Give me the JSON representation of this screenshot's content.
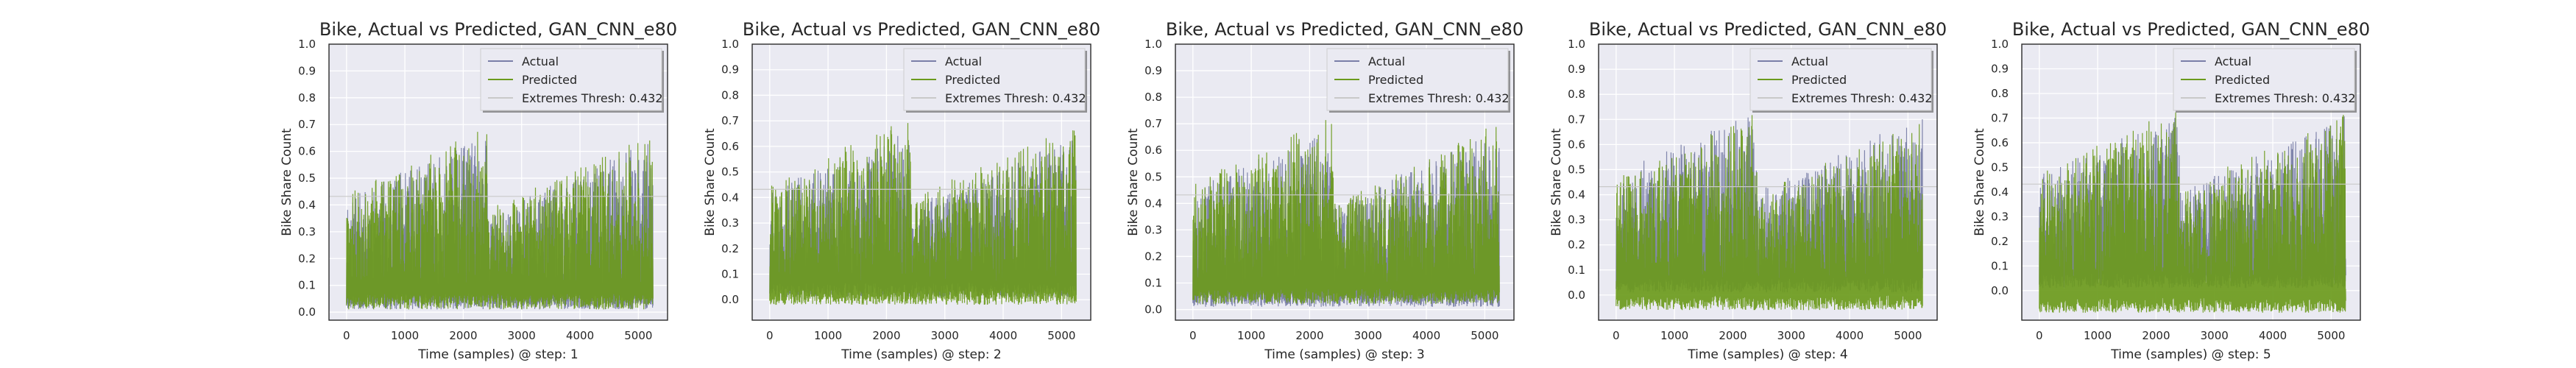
{
  "colors": {
    "actual": "#7a7fa8",
    "predicted": "#6b9a1c",
    "extremes": "#c9c9c9",
    "plot_bg": "#eaeaf2",
    "grid": "#ffffff"
  },
  "chart_data": [
    {
      "type": "line",
      "title": "Bike, Actual vs Predicted, GAN_CNN_e80",
      "xlabel": "Time (samples) @ step: 1",
      "ylabel": "Bike Share Count",
      "xlim": [
        -300,
        5500
      ],
      "ylim": [
        -0.03,
        1.0
      ],
      "xticks": [
        0,
        1000,
        2000,
        3000,
        4000,
        5000
      ],
      "yticks": [
        0.0,
        0.1,
        0.2,
        0.3,
        0.4,
        0.5,
        0.6,
        0.7,
        0.8,
        0.9,
        1.0
      ],
      "ytick_labels": [
        "0.0",
        "0.1",
        "0.2",
        "0.3",
        "0.4",
        "0.5",
        "0.6",
        "0.7",
        "0.8",
        "0.9",
        "1.0"
      ],
      "grid": true,
      "legend_position": "top-right",
      "extremes_threshold": 0.432,
      "series": [
        {
          "name": "Actual",
          "x_range": [
            0,
            5250
          ],
          "low": 0.01,
          "peak_max": 0.66
        },
        {
          "name": "Predicted",
          "x_range": [
            0,
            5250
          ],
          "low": 0.01,
          "peak_max": 0.69
        },
        {
          "name": "Extremes Thresh: 0.432",
          "value": 0.432
        }
      ]
    },
    {
      "type": "line",
      "title": "Bike, Actual vs Predicted, GAN_CNN_e80",
      "xlabel": "Time (samples) @ step: 2",
      "ylabel": "Bike Share Count",
      "xlim": [
        -300,
        5500
      ],
      "ylim": [
        -0.08,
        1.0
      ],
      "xticks": [
        0,
        1000,
        2000,
        3000,
        4000,
        5000
      ],
      "yticks": [
        0.0,
        0.1,
        0.2,
        0.3,
        0.4,
        0.5,
        0.6,
        0.7,
        0.8,
        0.9,
        1.0
      ],
      "ytick_labels": [
        "0.0",
        "0.1",
        "0.2",
        "0.3",
        "0.4",
        "0.5",
        "0.6",
        "0.7",
        "0.8",
        "0.9",
        "1.0"
      ],
      "grid": true,
      "legend_position": "top-right",
      "extremes_threshold": 0.432,
      "series": [
        {
          "name": "Actual",
          "x_range": [
            0,
            5250
          ],
          "low": 0.01,
          "peak_max": 0.66
        },
        {
          "name": "Predicted",
          "x_range": [
            0,
            5250
          ],
          "low": -0.02,
          "peak_max": 0.71
        },
        {
          "name": "Extremes Thresh: 0.432",
          "value": 0.432
        }
      ]
    },
    {
      "type": "line",
      "title": "Bike, Actual vs Predicted, GAN_CNN_e80",
      "xlabel": "Time (samples) @ step: 3",
      "ylabel": "Bike Share Count",
      "xlim": [
        -300,
        5500
      ],
      "ylim": [
        -0.04,
        1.0
      ],
      "xticks": [
        0,
        1000,
        2000,
        3000,
        4000,
        5000
      ],
      "yticks": [
        0.0,
        0.1,
        0.2,
        0.3,
        0.4,
        0.5,
        0.6,
        0.7,
        0.8,
        0.9,
        1.0
      ],
      "ytick_labels": [
        "0.0",
        "0.1",
        "0.2",
        "0.3",
        "0.4",
        "0.5",
        "0.6",
        "0.7",
        "0.8",
        "0.9",
        "1.0"
      ],
      "grid": true,
      "legend_position": "top-right",
      "extremes_threshold": 0.432,
      "series": [
        {
          "name": "Actual",
          "x_range": [
            0,
            5250
          ],
          "low": 0.01,
          "peak_max": 0.7
        },
        {
          "name": "Predicted",
          "x_range": [
            0,
            5250
          ],
          "low": 0.02,
          "peak_max": 0.73
        },
        {
          "name": "Extremes Thresh: 0.432",
          "value": 0.432
        }
      ]
    },
    {
      "type": "line",
      "title": "Bike, Actual vs Predicted, GAN_CNN_e80",
      "xlabel": "Time (samples) @ step: 4",
      "ylabel": "Bike Share Count",
      "xlim": [
        -300,
        5500
      ],
      "ylim": [
        -0.1,
        1.0
      ],
      "xticks": [
        0,
        1000,
        2000,
        3000,
        4000,
        5000
      ],
      "yticks": [
        0.0,
        0.1,
        0.2,
        0.3,
        0.4,
        0.5,
        0.6,
        0.7,
        0.8,
        0.9,
        1.0
      ],
      "ytick_labels": [
        "0.0",
        "0.1",
        "0.2",
        "0.3",
        "0.4",
        "0.5",
        "0.6",
        "0.7",
        "0.8",
        "0.9",
        "1.0"
      ],
      "grid": true,
      "legend_position": "top-right",
      "extremes_threshold": 0.432,
      "series": [
        {
          "name": "Actual",
          "x_range": [
            0,
            5250
          ],
          "low": 0.01,
          "peak_max": 0.74
        },
        {
          "name": "Predicted",
          "x_range": [
            0,
            5250
          ],
          "low": -0.06,
          "peak_max": 0.72
        },
        {
          "name": "Extremes Thresh: 0.432",
          "value": 0.432
        }
      ]
    },
    {
      "type": "line",
      "title": "Bike, Actual vs Predicted, GAN_CNN_e80",
      "xlabel": "Time (samples) @ step: 5",
      "ylabel": "Bike Share Count",
      "xlim": [
        -300,
        5500
      ],
      "ylim": [
        -0.12,
        1.0
      ],
      "xticks": [
        0,
        1000,
        2000,
        3000,
        4000,
        5000
      ],
      "yticks": [
        0.0,
        0.1,
        0.2,
        0.3,
        0.4,
        0.5,
        0.6,
        0.7,
        0.8,
        0.9,
        1.0
      ],
      "ytick_labels": [
        "0.0",
        "0.1",
        "0.2",
        "0.3",
        "0.4",
        "0.5",
        "0.6",
        "0.7",
        "0.8",
        "0.9",
        "1.0"
      ],
      "grid": true,
      "legend_position": "top-right",
      "extremes_threshold": 0.432,
      "series": [
        {
          "name": "Actual",
          "x_range": [
            0,
            5250
          ],
          "low": 0.01,
          "peak_max": 0.73
        },
        {
          "name": "Predicted",
          "x_range": [
            0,
            5250
          ],
          "low": -0.09,
          "peak_max": 0.74
        },
        {
          "name": "Extremes Thresh: 0.432",
          "value": 0.432
        }
      ]
    }
  ]
}
